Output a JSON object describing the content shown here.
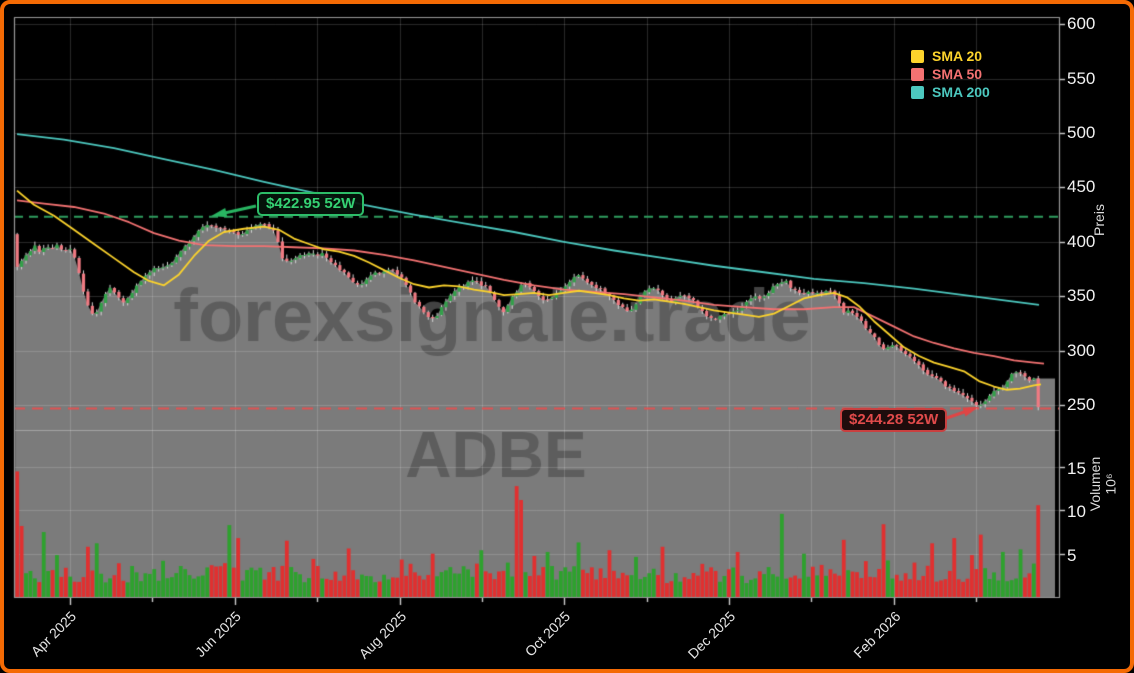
{
  "window": {
    "background": "#000000",
    "border_color": "#f46a04"
  },
  "legend": {
    "items": [
      {
        "label": "SMA 20",
        "color": "#fcd32c"
      },
      {
        "label": "SMA 50",
        "color": "#f47272"
      },
      {
        "label": "SMA 200",
        "color": "#4cc8bf"
      }
    ]
  },
  "watermark": {
    "line1": "forexsignale.trade",
    "line2": "ADBE"
  },
  "annotations": {
    "high": {
      "label": "$422.95 52W",
      "value": 422.95,
      "color": "#2dbd68"
    },
    "low": {
      "label": "$244.28 52W",
      "value": 244.28,
      "color": "#e14b4b"
    }
  },
  "y_axis": {
    "title": "Preis",
    "ticks": [
      "600",
      "550",
      "500",
      "450",
      "400",
      "350",
      "300",
      "250"
    ]
  },
  "volume_axis": {
    "title": "Volumen",
    "scale": "10⁶",
    "ticks": [
      "15",
      "10",
      "5"
    ]
  },
  "x_axis": {
    "labels": [
      "Apr 2025",
      "Jun 2025",
      "Aug 2025",
      "Oct 2025",
      "Dec 2025",
      "Feb 2026"
    ]
  },
  "chart_data": {
    "type": "candlestick",
    "price_axis_range": [
      227,
      607
    ],
    "volume_axis_range_millions": [
      0,
      19
    ],
    "key_levels": {
      "high_52w": 422.95,
      "low_52w": 244.28
    },
    "first_candle": {
      "open": 407,
      "close": 377
    },
    "close_path": [
      [
        13,
        377
      ],
      [
        20,
        385
      ],
      [
        25,
        391
      ],
      [
        31,
        396
      ],
      [
        36,
        391
      ],
      [
        42,
        397
      ],
      [
        48,
        393
      ],
      [
        54,
        398
      ],
      [
        60,
        391
      ],
      [
        66,
        394
      ],
      [
        71,
        386
      ],
      [
        76,
        369
      ],
      [
        81,
        349
      ],
      [
        86,
        336
      ],
      [
        91,
        333
      ],
      [
        96,
        341
      ],
      [
        101,
        351
      ],
      [
        106,
        357
      ],
      [
        111,
        353
      ],
      [
        116,
        347
      ],
      [
        121,
        344
      ],
      [
        127,
        351
      ],
      [
        133,
        360
      ],
      [
        139,
        367
      ],
      [
        146,
        373
      ],
      [
        152,
        378
      ],
      [
        158,
        375
      ],
      [
        164,
        379
      ],
      [
        170,
        383
      ],
      [
        176,
        390
      ],
      [
        182,
        398
      ],
      [
        188,
        403
      ],
      [
        194,
        409
      ],
      [
        200,
        414
      ],
      [
        206,
        416
      ],
      [
        212,
        414
      ],
      [
        218,
        413
      ],
      [
        224,
        411
      ],
      [
        230,
        408
      ],
      [
        236,
        406
      ],
      [
        242,
        410
      ],
      [
        248,
        413
      ],
      [
        254,
        415
      ],
      [
        260,
        416
      ],
      [
        265,
        413
      ],
      [
        270,
        409
      ],
      [
        274,
        400
      ],
      [
        278,
        386
      ],
      [
        283,
        381
      ],
      [
        289,
        384
      ],
      [
        295,
        387
      ],
      [
        301,
        389
      ],
      [
        307,
        390
      ],
      [
        313,
        387
      ],
      [
        319,
        389
      ],
      [
        325,
        383
      ],
      [
        331,
        378
      ],
      [
        337,
        374
      ],
      [
        343,
        368
      ],
      [
        349,
        363
      ],
      [
        355,
        360
      ],
      [
        361,
        363
      ],
      [
        367,
        370
      ],
      [
        373,
        373
      ],
      [
        379,
        371
      ],
      [
        385,
        374
      ],
      [
        391,
        372
      ],
      [
        397,
        369
      ],
      [
        403,
        359
      ],
      [
        409,
        348
      ],
      [
        415,
        340
      ],
      [
        421,
        334
      ],
      [
        427,
        329
      ],
      [
        433,
        333
      ],
      [
        439,
        341
      ],
      [
        445,
        349
      ],
      [
        451,
        355
      ],
      [
        457,
        359
      ],
      [
        463,
        362
      ],
      [
        469,
        364
      ],
      [
        475,
        362
      ],
      [
        481,
        359
      ],
      [
        487,
        352
      ],
      [
        493,
        342
      ],
      [
        499,
        336
      ],
      [
        505,
        344
      ],
      [
        511,
        353
      ],
      [
        517,
        359
      ],
      [
        523,
        361
      ],
      [
        529,
        357
      ],
      [
        535,
        351
      ],
      [
        541,
        345
      ],
      [
        547,
        349
      ],
      [
        553,
        353
      ],
      [
        559,
        357
      ],
      [
        565,
        362
      ],
      [
        571,
        369
      ],
      [
        577,
        368
      ],
      [
        583,
        363
      ],
      [
        589,
        359
      ],
      [
        595,
        357
      ],
      [
        601,
        353
      ],
      [
        607,
        349
      ],
      [
        613,
        344
      ],
      [
        619,
        339
      ],
      [
        625,
        334
      ],
      [
        631,
        340
      ],
      [
        637,
        350
      ],
      [
        643,
        357
      ],
      [
        649,
        359
      ],
      [
        655,
        355
      ],
      [
        661,
        349
      ],
      [
        667,
        345
      ],
      [
        673,
        348
      ],
      [
        679,
        351
      ],
      [
        685,
        349
      ],
      [
        691,
        344
      ],
      [
        697,
        338
      ],
      [
        703,
        332
      ],
      [
        709,
        329
      ],
      [
        715,
        331
      ],
      [
        721,
        333
      ],
      [
        727,
        335
      ],
      [
        733,
        337
      ],
      [
        739,
        341
      ],
      [
        745,
        346
      ],
      [
        751,
        350
      ],
      [
        757,
        346
      ],
      [
        763,
        351
      ],
      [
        769,
        358
      ],
      [
        775,
        363
      ],
      [
        781,
        365
      ],
      [
        787,
        358
      ],
      [
        793,
        355
      ],
      [
        799,
        353
      ],
      [
        805,
        354
      ],
      [
        811,
        352
      ],
      [
        817,
        353
      ],
      [
        823,
        354
      ],
      [
        829,
        353
      ],
      [
        835,
        345
      ],
      [
        840,
        333
      ],
      [
        845,
        337
      ],
      [
        850,
        334
      ],
      [
        855,
        329
      ],
      [
        860,
        323
      ],
      [
        865,
        317
      ],
      [
        870,
        312
      ],
      [
        875,
        306
      ],
      [
        880,
        300
      ],
      [
        885,
        303
      ],
      [
        890,
        306
      ],
      [
        895,
        302
      ],
      [
        900,
        298
      ],
      [
        905,
        294
      ],
      [
        910,
        291
      ],
      [
        915,
        286
      ],
      [
        920,
        281
      ],
      [
        925,
        278
      ],
      [
        930,
        276
      ],
      [
        935,
        272
      ],
      [
        940,
        269
      ],
      [
        945,
        266
      ],
      [
        950,
        263
      ],
      [
        955,
        261
      ],
      [
        960,
        259
      ],
      [
        965,
        256
      ],
      [
        970,
        252
      ],
      [
        975,
        248
      ],
      [
        980,
        252
      ],
      [
        985,
        258
      ],
      [
        990,
        262
      ],
      [
        995,
        264
      ],
      [
        1000,
        268
      ],
      [
        1005,
        275
      ],
      [
        1010,
        282
      ],
      [
        1015,
        280
      ],
      [
        1020,
        276
      ],
      [
        1025,
        273
      ],
      [
        1030,
        274
      ],
      [
        1034,
        271
      ],
      [
        1036,
        248
      ]
    ],
    "sma20": [
      [
        13,
        447
      ],
      [
        30,
        434
      ],
      [
        50,
        424
      ],
      [
        70,
        411
      ],
      [
        90,
        398
      ],
      [
        110,
        385
      ],
      [
        130,
        372
      ],
      [
        145,
        364
      ],
      [
        160,
        360
      ],
      [
        175,
        370
      ],
      [
        190,
        387
      ],
      [
        205,
        401
      ],
      [
        220,
        409
      ],
      [
        240,
        412
      ],
      [
        260,
        414
      ],
      [
        275,
        411
      ],
      [
        290,
        403
      ],
      [
        305,
        398
      ],
      [
        320,
        393
      ],
      [
        335,
        391
      ],
      [
        350,
        387
      ],
      [
        365,
        381
      ],
      [
        380,
        374
      ],
      [
        395,
        367
      ],
      [
        410,
        361
      ],
      [
        425,
        358
      ],
      [
        440,
        360
      ],
      [
        455,
        359
      ],
      [
        470,
        356
      ],
      [
        485,
        354
      ],
      [
        500,
        351
      ],
      [
        515,
        352
      ],
      [
        530,
        353
      ],
      [
        545,
        351
      ],
      [
        560,
        353
      ],
      [
        575,
        355
      ],
      [
        590,
        353
      ],
      [
        605,
        351
      ],
      [
        620,
        348
      ],
      [
        635,
        346
      ],
      [
        650,
        347
      ],
      [
        665,
        345
      ],
      [
        680,
        343
      ],
      [
        695,
        340
      ],
      [
        710,
        337
      ],
      [
        725,
        335
      ],
      [
        740,
        333
      ],
      [
        755,
        331
      ],
      [
        770,
        334
      ],
      [
        785,
        341
      ],
      [
        800,
        348
      ],
      [
        815,
        351
      ],
      [
        830,
        353
      ],
      [
        843,
        349
      ],
      [
        856,
        340
      ],
      [
        870,
        327
      ],
      [
        885,
        315
      ],
      [
        900,
        303
      ],
      [
        915,
        295
      ],
      [
        930,
        289
      ],
      [
        945,
        285
      ],
      [
        960,
        281
      ],
      [
        975,
        272
      ],
      [
        990,
        267
      ],
      [
        1003,
        264
      ],
      [
        1016,
        265
      ],
      [
        1030,
        268
      ],
      [
        1037,
        269
      ]
    ],
    "sma50": [
      [
        13,
        438
      ],
      [
        40,
        435
      ],
      [
        70,
        432
      ],
      [
        100,
        426
      ],
      [
        125,
        418
      ],
      [
        150,
        408
      ],
      [
        175,
        401
      ],
      [
        200,
        397
      ],
      [
        230,
        396
      ],
      [
        260,
        396
      ],
      [
        290,
        395
      ],
      [
        320,
        394
      ],
      [
        350,
        392
      ],
      [
        380,
        388
      ],
      [
        410,
        383
      ],
      [
        440,
        377
      ],
      [
        470,
        371
      ],
      [
        500,
        365
      ],
      [
        530,
        360
      ],
      [
        560,
        356
      ],
      [
        590,
        354
      ],
      [
        620,
        352
      ],
      [
        650,
        349
      ],
      [
        680,
        346
      ],
      [
        710,
        342
      ],
      [
        740,
        340
      ],
      [
        770,
        338
      ],
      [
        800,
        338
      ],
      [
        830,
        340
      ],
      [
        850,
        340
      ],
      [
        870,
        331
      ],
      [
        890,
        322
      ],
      [
        910,
        313
      ],
      [
        930,
        307
      ],
      [
        950,
        302
      ],
      [
        970,
        298
      ],
      [
        990,
        295
      ],
      [
        1010,
        291
      ],
      [
        1030,
        289
      ],
      [
        1040,
        288
      ]
    ],
    "sma200": [
      [
        13,
        499
      ],
      [
        60,
        494
      ],
      [
        110,
        486
      ],
      [
        160,
        476
      ],
      [
        210,
        466
      ],
      [
        260,
        455
      ],
      [
        310,
        445
      ],
      [
        360,
        434
      ],
      [
        410,
        425
      ],
      [
        460,
        417
      ],
      [
        510,
        409
      ],
      [
        560,
        400
      ],
      [
        610,
        392
      ],
      [
        660,
        385
      ],
      [
        710,
        378
      ],
      [
        760,
        372
      ],
      [
        810,
        366
      ],
      [
        860,
        362
      ],
      [
        910,
        357
      ],
      [
        960,
        351
      ],
      [
        1010,
        345
      ],
      [
        1035,
        342
      ]
    ],
    "volume_spikes_millions": [
      [
        13,
        14.5,
        "r"
      ],
      [
        18,
        8.2,
        "r"
      ],
      [
        40,
        7.5,
        "g"
      ],
      [
        86,
        5.8,
        "r"
      ],
      [
        91,
        6.2,
        "g"
      ],
      [
        225,
        8.3,
        "g"
      ],
      [
        232,
        6.8,
        "r"
      ],
      [
        283,
        6.5,
        "r"
      ],
      [
        308,
        4.4,
        "r"
      ],
      [
        345,
        5.6,
        "r"
      ],
      [
        430,
        5.0,
        "r"
      ],
      [
        478,
        5.4,
        "g"
      ],
      [
        514,
        12.8,
        "r"
      ],
      [
        519,
        11.2,
        "r"
      ],
      [
        545,
        5.2,
        "g"
      ],
      [
        575,
        6.3,
        "g"
      ],
      [
        605,
        5.4,
        "r"
      ],
      [
        660,
        5.8,
        "r"
      ],
      [
        735,
        5.2,
        "r"
      ],
      [
        778,
        9.6,
        "g"
      ],
      [
        800,
        5.0,
        "g"
      ],
      [
        838,
        6.6,
        "r"
      ],
      [
        878,
        8.4,
        "r"
      ],
      [
        930,
        6.2,
        "r"
      ],
      [
        952,
        6.8,
        "r"
      ],
      [
        975,
        7.2,
        "r"
      ],
      [
        1000,
        5.2,
        "g"
      ],
      [
        1016,
        5.5,
        "g"
      ],
      [
        1033,
        10.6,
        "r"
      ]
    ],
    "colors": {
      "candle_up": "#33a04a",
      "candle_down": "#ef7a82",
      "wick": "#d4d4d4",
      "volume_up": "#2ea12e",
      "volume_down": "#e03030",
      "sma20": "#fcd32c",
      "sma50": "#f47272",
      "sma200": "#4cc8bf",
      "area_fill": "#7b7b7b",
      "high_line": "#2f9e5f",
      "low_line": "#e05252"
    }
  }
}
